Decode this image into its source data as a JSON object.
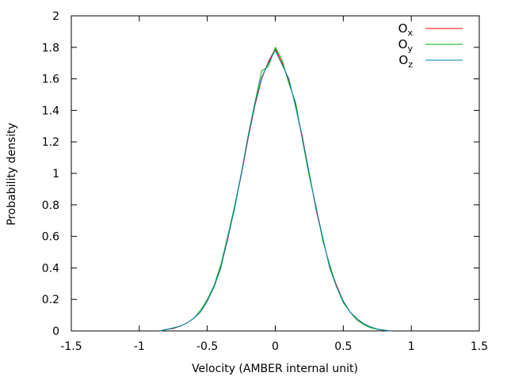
{
  "chart_data": {
    "type": "line",
    "xlabel": "Velocity (AMBER internal unit)",
    "ylabel": "Probability density",
    "xlim": [
      -1.5,
      1.5
    ],
    "ylim": [
      0,
      2
    ],
    "xticks": [
      "-1.5",
      "-1",
      "-0.5",
      "0",
      "0.5",
      "1",
      "1.5"
    ],
    "yticks": [
      "0",
      "0.2",
      "0.4",
      "0.6",
      "0.8",
      "1",
      "1.2",
      "1.4",
      "1.6",
      "1.8",
      "2"
    ],
    "grid": false,
    "legend_position": "top-right",
    "series": [
      {
        "name": "Ox",
        "legend_main": "O",
        "legend_sub": "x",
        "color": "#ff0000",
        "x": [
          -0.85,
          -0.8,
          -0.75,
          -0.7,
          -0.65,
          -0.6,
          -0.55,
          -0.5,
          -0.45,
          -0.4,
          -0.35,
          -0.3,
          -0.25,
          -0.2,
          -0.15,
          -0.1,
          -0.05,
          0,
          0.05,
          0.1,
          0.15,
          0.2,
          0.25,
          0.3,
          0.35,
          0.4,
          0.45,
          0.5,
          0.55,
          0.6,
          0.65,
          0.7,
          0.75,
          0.8,
          0.85
        ],
        "y": [
          0.0,
          0.01,
          0.015,
          0.03,
          0.05,
          0.08,
          0.12,
          0.19,
          0.28,
          0.41,
          0.58,
          0.78,
          0.99,
          1.22,
          1.43,
          1.6,
          1.71,
          1.79,
          1.7,
          1.59,
          1.43,
          1.23,
          1.0,
          0.77,
          0.58,
          0.41,
          0.29,
          0.19,
          0.12,
          0.07,
          0.045,
          0.025,
          0.01,
          0.005,
          0.0
        ]
      },
      {
        "name": "Oy",
        "legend_main": "O",
        "legend_sub": "y",
        "color": "#00b000",
        "x": [
          -0.85,
          -0.8,
          -0.75,
          -0.7,
          -0.65,
          -0.6,
          -0.55,
          -0.5,
          -0.45,
          -0.4,
          -0.35,
          -0.3,
          -0.25,
          -0.2,
          -0.15,
          -0.1,
          -0.05,
          0,
          0.05,
          0.1,
          0.15,
          0.2,
          0.25,
          0.3,
          0.35,
          0.4,
          0.45,
          0.5,
          0.55,
          0.6,
          0.65,
          0.7,
          0.75,
          0.8,
          0.85
        ],
        "y": [
          0.0,
          0.008,
          0.02,
          0.03,
          0.05,
          0.08,
          0.13,
          0.2,
          0.29,
          0.42,
          0.6,
          0.79,
          1.0,
          1.24,
          1.45,
          1.65,
          1.68,
          1.8,
          1.72,
          1.57,
          1.45,
          1.21,
          0.98,
          0.79,
          0.57,
          0.42,
          0.28,
          0.18,
          0.12,
          0.07,
          0.04,
          0.02,
          0.01,
          0.005,
          0.0
        ]
      },
      {
        "name": "Oz",
        "legend_main": "O",
        "legend_sub": "z",
        "color": "#0080c0",
        "x": [
          -0.85,
          -0.8,
          -0.75,
          -0.7,
          -0.65,
          -0.6,
          -0.55,
          -0.5,
          -0.45,
          -0.4,
          -0.35,
          -0.3,
          -0.25,
          -0.2,
          -0.15,
          -0.1,
          -0.05,
          0,
          0.05,
          0.1,
          0.15,
          0.2,
          0.25,
          0.3,
          0.35,
          0.4,
          0.45,
          0.5,
          0.55,
          0.6,
          0.65,
          0.7,
          0.75,
          0.8,
          0.85
        ],
        "y": [
          0.0,
          0.01,
          0.018,
          0.03,
          0.05,
          0.08,
          0.12,
          0.19,
          0.28,
          0.4,
          0.59,
          0.77,
          1.0,
          1.23,
          1.44,
          1.61,
          1.7,
          1.78,
          1.69,
          1.6,
          1.42,
          1.22,
          1.0,
          0.78,
          0.59,
          0.4,
          0.28,
          0.19,
          0.12,
          0.08,
          0.045,
          0.025,
          0.012,
          0.005,
          0.0
        ]
      }
    ]
  }
}
